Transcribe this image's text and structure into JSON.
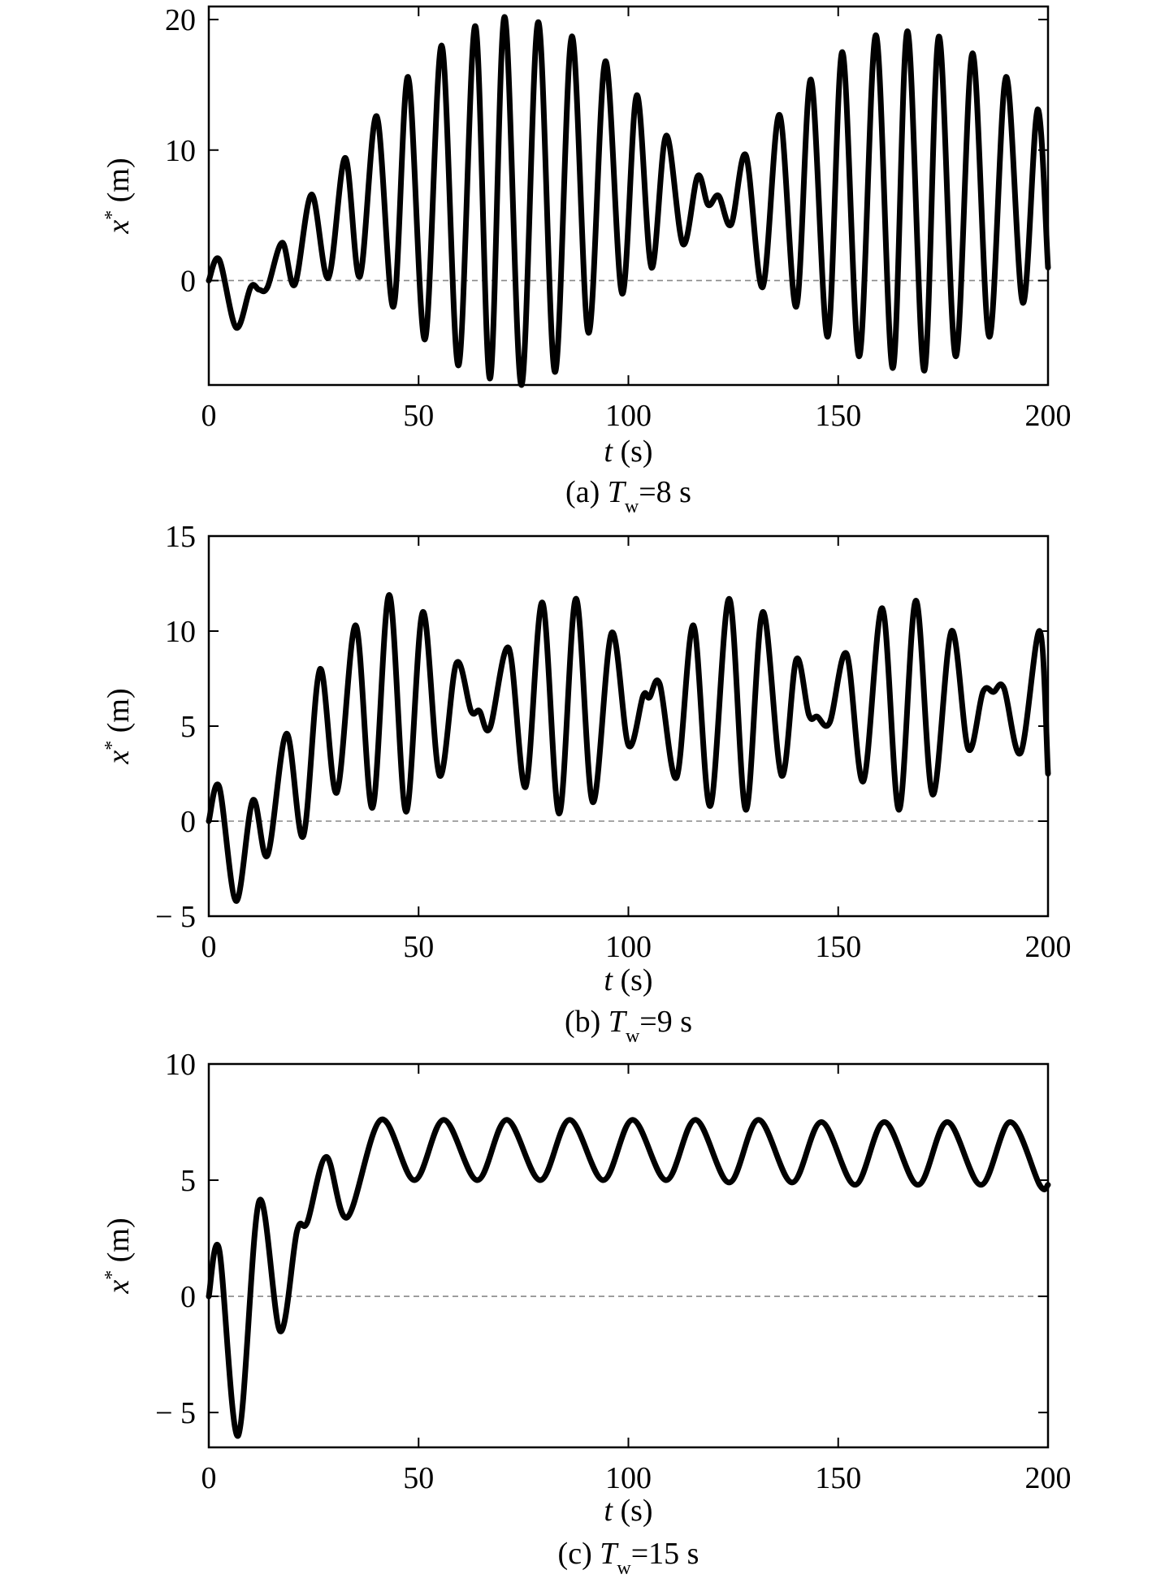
{
  "chart_data": [
    {
      "type": "line",
      "caption": {
        "prefix": "(a) ",
        "symbol": "T",
        "subscript": "w",
        "suffix": "=8 s"
      },
      "xlabel": {
        "symbol": "t",
        "unit": " (s)"
      },
      "ylabel": {
        "symbol": "x",
        "superscript": "*",
        "unit": " (m)"
      },
      "xlim": [
        0,
        200
      ],
      "ylim": [
        -8,
        21
      ],
      "xticks": [
        0,
        50,
        100,
        150,
        200
      ],
      "xtick_labels": [
        "0",
        "50",
        "100",
        "150",
        "200"
      ],
      "yticks": [
        0,
        10,
        20
      ],
      "ytick_labels": [
        "0",
        "10",
        "20"
      ],
      "reference_line": {
        "y": 0,
        "style": "dashed"
      },
      "x": [
        0,
        2.5,
        6.5,
        10,
        12,
        14,
        17.5,
        20.5,
        24.5,
        28.5,
        32.5,
        36,
        40,
        44,
        47.5,
        51.5,
        55.5,
        59.5,
        63.5,
        67,
        70.5,
        74.5,
        78.5,
        82.5,
        86.5,
        90.5,
        94.5,
        98.5,
        102,
        105.5,
        109,
        113,
        116.5,
        119,
        121.5,
        124.5,
        128,
        132,
        136,
        140,
        143.5,
        147.5,
        151,
        155,
        159,
        163,
        166.5,
        170.5,
        174,
        178,
        182,
        186,
        190,
        194,
        197.5,
        200
      ],
      "y": [
        0,
        1.6,
        -3.6,
        -0.5,
        -0.7,
        -0.5,
        2.9,
        -0.3,
        6.6,
        0.2,
        9.4,
        0.3,
        12.6,
        -2,
        15.6,
        -4.5,
        18,
        -6.5,
        19.5,
        -7.5,
        20.2,
        -8,
        19.8,
        -7,
        18.7,
        -4,
        16.8,
        -1,
        14.2,
        1,
        11.1,
        2.8,
        8,
        5.8,
        6.5,
        4.3,
        9.6,
        -0.5,
        12.7,
        -2,
        15.4,
        -4.3,
        17.5,
        -5.8,
        18.8,
        -6.7,
        19.1,
        -6.9,
        18.7,
        -5.8,
        17.4,
        -4.3,
        15.6,
        -1.7,
        13.1,
        1
      ]
    },
    {
      "type": "line",
      "caption": {
        "prefix": "(b) ",
        "symbol": "T",
        "subscript": "w",
        "suffix": "=9 s"
      },
      "xlabel": {
        "symbol": "t",
        "unit": " (s)"
      },
      "ylabel": {
        "symbol": "x",
        "superscript": "*",
        "unit": " (m)"
      },
      "xlim": [
        0,
        200
      ],
      "ylim": [
        -5,
        15
      ],
      "xticks": [
        0,
        50,
        100,
        150,
        200
      ],
      "xtick_labels": [
        "0",
        "50",
        "100",
        "150",
        "200"
      ],
      "yticks": [
        -5,
        0,
        5,
        10,
        15
      ],
      "ytick_labels": [
        "− 5",
        "0",
        "5",
        "10",
        "15"
      ],
      "reference_line": {
        "y": 0,
        "style": "dashed"
      },
      "x": [
        0,
        2.5,
        6.5,
        10.5,
        14,
        18.5,
        22.5,
        26.5,
        30.5,
        35,
        39,
        43,
        47,
        51,
        55,
        59,
        62.5,
        64.5,
        67,
        71.5,
        75.5,
        79.5,
        83.5,
        87.5,
        91.5,
        96,
        100,
        103.5,
        105,
        107.5,
        111.5,
        115.5,
        119.5,
        124,
        128,
        132,
        136.5,
        140,
        143,
        145,
        148,
        152,
        156,
        160.5,
        164.5,
        168.5,
        172.5,
        177,
        181,
        184.5,
        187,
        189.5,
        193.5,
        198,
        200
      ],
      "y": [
        0,
        1.8,
        -4.2,
        1.1,
        -1.8,
        4.6,
        -0.8,
        8,
        1.5,
        10.3,
        0.7,
        11.9,
        0.5,
        11,
        2.4,
        8.3,
        5.8,
        5.8,
        4.9,
        9.1,
        1.8,
        11.5,
        0.4,
        11.7,
        1,
        9.9,
        4,
        6.6,
        6.5,
        7.2,
        2.3,
        10.3,
        0.8,
        11.7,
        0.6,
        11,
        2.4,
        8.5,
        5.6,
        5.5,
        5.2,
        8.8,
        2.1,
        11.2,
        0.6,
        11.6,
        1.4,
        10,
        3.8,
        6.8,
        6.8,
        7,
        3.6,
        10,
        2.5
      ]
    },
    {
      "type": "line",
      "caption": {
        "prefix": "(c) ",
        "symbol": "T",
        "subscript": "w",
        "suffix": "=15 s"
      },
      "xlabel": {
        "symbol": "t",
        "unit": " (s)"
      },
      "ylabel": {
        "symbol": "x",
        "superscript": "*",
        "unit": " (m)"
      },
      "xlim": [
        0,
        200
      ],
      "ylim": [
        -6.5,
        10
      ],
      "xticks": [
        0,
        50,
        100,
        150,
        200
      ],
      "xtick_labels": [
        "0",
        "50",
        "100",
        "150",
        "200"
      ],
      "yticks": [
        -5,
        0,
        5,
        10
      ],
      "ytick_labels": [
        "− 5",
        "0",
        "5",
        "10"
      ],
      "reference_line": {
        "y": 0,
        "style": "dashed"
      },
      "x": [
        0,
        2.5,
        7,
        12,
        17,
        21,
        23.5,
        28,
        33,
        41,
        49,
        56,
        64,
        71,
        79,
        86,
        94,
        101,
        109,
        116,
        124,
        131,
        139,
        146,
        154,
        161,
        169,
        176,
        184,
        191,
        198,
        200
      ],
      "y": [
        0,
        2,
        -6,
        4.1,
        -1.5,
        2.8,
        3.2,
        6,
        3.4,
        7.6,
        5,
        7.6,
        5,
        7.6,
        5,
        7.6,
        5,
        7.6,
        5,
        7.6,
        4.9,
        7.6,
        4.9,
        7.5,
        4.8,
        7.5,
        4.8,
        7.5,
        4.8,
        7.5,
        4.8,
        4.8
      ]
    }
  ]
}
